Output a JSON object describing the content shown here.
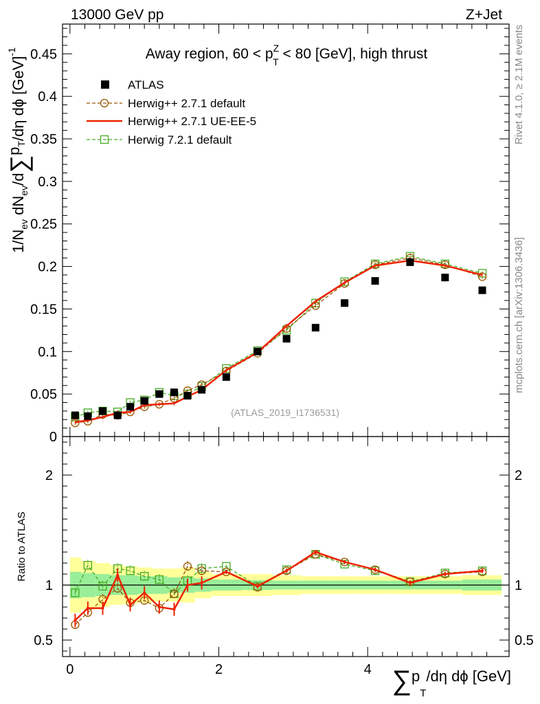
{
  "header": {
    "left": "13000 GeV pp",
    "right": "Z+Jet"
  },
  "side_labels": {
    "top": "Rivet 4.1.0, ≥ 2.1M events",
    "bottom": "mcplots.cern.ch [arXiv:1306.3436]"
  },
  "watermark": "(ATLAS_2019_I1736531)",
  "chart_data": {
    "type": "scatter",
    "title": "Away region, 60 < p_T^Z < 80 [GeV], high thrust",
    "title_parts": {
      "pre": "Away region, 60 < p",
      "sup": "Z",
      "sub": "T",
      "post": " < 80 [GeV], high thrust"
    },
    "xlabel": "∑ p_T/dη dϕ [GeV]",
    "xlabel_parts": {
      "sum": "∑",
      "p": "p",
      "sub": "T",
      "rest": "/dη dϕ [GeV]"
    },
    "ylabel": "1/N_ev dN_ev/d∑p_T/dη dϕ [GeV]^-1",
    "ylabel_parts": {
      "a": "1/N",
      "a_sub": "ev",
      "b": " dN",
      "b_sub": "ev",
      "c": "/d",
      "sum": "∑",
      "p": "p",
      "p_sub": "T",
      "d": "/dη dϕ  [GeV]",
      "sup": "-1"
    },
    "ratio_ylabel": "Ratio to ATLAS",
    "xlim": [
      -0.1,
      5.9
    ],
    "ylim": [
      0,
      0.485
    ],
    "ratio_ylim": [
      0.35,
      2.35
    ],
    "x_ticks": [
      "0",
      "2",
      "4"
    ],
    "x_tick_values": [
      0,
      2,
      4
    ],
    "y_ticks": [
      "0",
      "0.05",
      "0.1",
      "0.15",
      "0.2",
      "0.25",
      "0.3",
      "0.35",
      "0.4",
      "0.45"
    ],
    "y_tick_values": [
      0,
      0.05,
      0.1,
      0.15,
      0.2,
      0.25,
      0.3,
      0.35,
      0.4,
      0.45
    ],
    "ratio_ticks": [
      "0.5",
      "1",
      "2"
    ],
    "ratio_tick_values": [
      0.5,
      1,
      2
    ],
    "x": [
      0.07,
      0.24,
      0.44,
      0.64,
      0.81,
      1.0,
      1.2,
      1.4,
      1.58,
      1.77,
      2.1,
      2.52,
      2.91,
      3.3,
      3.69,
      4.1,
      4.57,
      5.04,
      5.54
    ],
    "xedges": [
      0.0,
      0.15,
      0.34,
      0.54,
      0.72,
      0.91,
      1.1,
      1.31,
      1.49,
      1.68,
      1.9,
      2.3,
      2.72,
      3.11,
      3.49,
      3.89,
      4.32,
      4.81,
      5.27,
      5.8
    ],
    "data": {
      "name": "ATLAS",
      "color": "#000000",
      "values": [
        0.025,
        0.024,
        0.03,
        0.025,
        0.035,
        0.042,
        0.05,
        0.052,
        0.048,
        0.055,
        0.07,
        0.1,
        0.115,
        0.128,
        0.157,
        0.183,
        0.205,
        0.187,
        0.172
      ],
      "band_inner": [
        0.12,
        0.11,
        0.1,
        0.09,
        0.09,
        0.08,
        0.08,
        0.07,
        0.07,
        0.06,
        0.05,
        0.045,
        0.04,
        0.04,
        0.04,
        0.04,
        0.04,
        0.04,
        0.05
      ],
      "band_outer": [
        0.25,
        0.22,
        0.2,
        0.18,
        0.17,
        0.16,
        0.15,
        0.15,
        0.16,
        0.12,
        0.1,
        0.1,
        0.09,
        0.08,
        0.08,
        0.08,
        0.08,
        0.08,
        0.09
      ]
    },
    "series": [
      {
        "name": "Herwig++ 2.7.1 default",
        "color": "#995500",
        "marker": "circle",
        "dashed": true,
        "values": [
          0.016,
          0.018,
          0.026,
          0.025,
          0.029,
          0.035,
          0.038,
          0.045,
          0.054,
          0.061,
          0.077,
          0.098,
          0.127,
          0.154,
          0.18,
          0.202,
          0.21,
          0.202,
          0.188
        ],
        "ratio": [
          0.64,
          0.75,
          0.87,
          0.97,
          0.84,
          0.86,
          0.79,
          0.92,
          1.17,
          1.13,
          1.12,
          0.98,
          1.13,
          1.28,
          1.21,
          1.14,
          1.03,
          1.1,
          1.12
        ]
      },
      {
        "name": "Herwig++ 2.7.1 UE-EE-5",
        "color": "#ee2200",
        "marker": "none",
        "dashed": false,
        "values": [
          0.017,
          0.019,
          0.023,
          0.028,
          0.029,
          0.037,
          0.038,
          0.039,
          0.047,
          0.055,
          0.078,
          0.099,
          0.13,
          0.159,
          0.181,
          0.201,
          0.207,
          0.201,
          0.19
        ],
        "ratio": [
          0.68,
          0.79,
          0.79,
          1.09,
          0.82,
          0.93,
          0.8,
          0.78,
          1.0,
          1.02,
          1.12,
          0.99,
          1.13,
          1.3,
          1.21,
          1.14,
          1.02,
          1.1,
          1.13
        ]
      },
      {
        "name": "Herwig 7.2.1 default",
        "color": "#44aa22",
        "marker": "square",
        "dashed": true,
        "values": [
          0.023,
          0.028,
          0.03,
          0.029,
          0.04,
          0.043,
          0.052,
          0.048,
          0.05,
          0.059,
          0.08,
          0.101,
          0.125,
          0.157,
          0.182,
          0.203,
          0.212,
          0.203,
          0.192
        ],
        "ratio": [
          0.93,
          1.18,
          0.99,
          1.15,
          1.13,
          1.08,
          1.05,
          0.92,
          1.04,
          1.15,
          1.17,
          0.99,
          1.14,
          1.28,
          1.19,
          1.13,
          1.03,
          1.11,
          1.13
        ]
      }
    ],
    "legend_position": "top-left"
  }
}
